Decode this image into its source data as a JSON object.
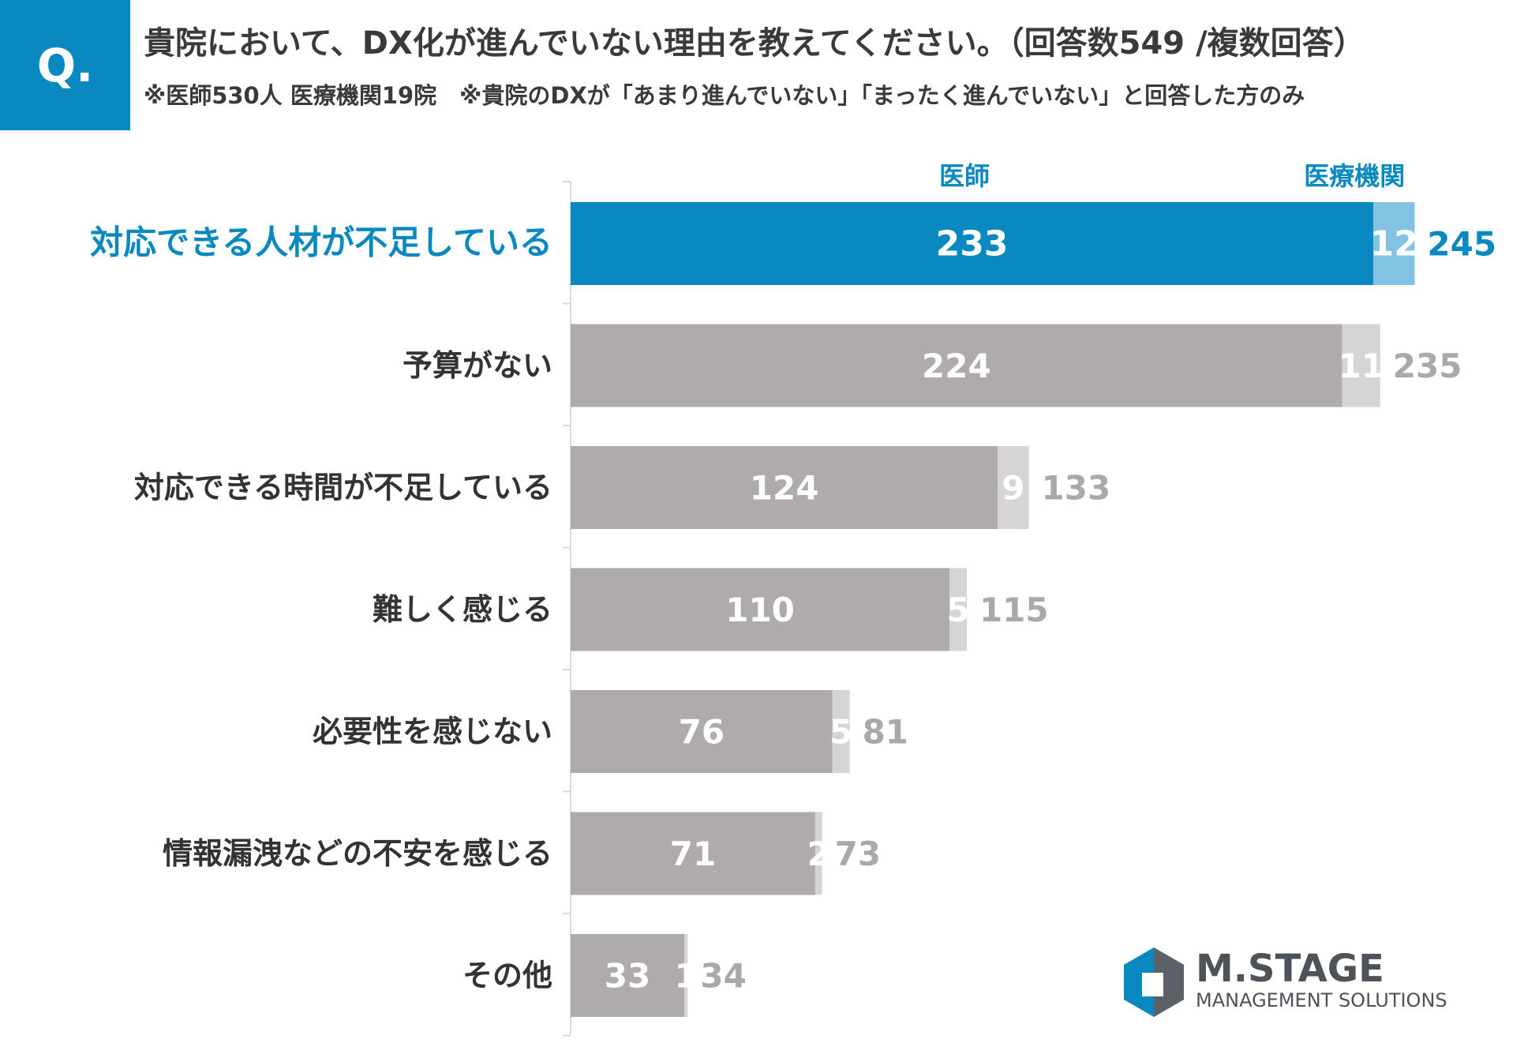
{
  "header": {
    "q_label": "Q.",
    "title": "貴院において、DX化が進んでいない理由を教えてください。（回答数549 /複数回答）",
    "subtitle": "※医師530人 医療機関19院　※貴院のDXが「あまり進んでいない」「まったく進んでいない」と回答した方のみ"
  },
  "chart_data": {
    "type": "bar",
    "orientation": "horizontal",
    "stacked": true,
    "categories": [
      "対応できる人材が不足している",
      "予算がない",
      "対応できる時間が不足している",
      "難しく感じる",
      "必要性を感じない",
      "情報漏洩などの不安を感じる",
      "その他"
    ],
    "series": [
      {
        "name": "医師",
        "values": [
          233,
          224,
          124,
          110,
          76,
          71,
          33
        ]
      },
      {
        "name": "医療機関",
        "values": [
          12,
          11,
          9,
          5,
          5,
          2,
          1
        ]
      }
    ],
    "totals": [
      245,
      235,
      133,
      115,
      81,
      73,
      34
    ],
    "highlight_index": 0,
    "legend_placement": "top",
    "grid": false,
    "colors": {
      "highlight_primary": "#0a88c0",
      "highlight_secondary": "#82c2e2",
      "primary": "#afabaa",
      "secondary": "#d6d4d4",
      "total_text": "#a9a9a9",
      "axis": "#d9d9d9"
    }
  },
  "logo": {
    "name": "M.STAGE",
    "tagline": "MANAGEMENT SOLUTIONS",
    "icon": "hexagon-logo-icon"
  }
}
